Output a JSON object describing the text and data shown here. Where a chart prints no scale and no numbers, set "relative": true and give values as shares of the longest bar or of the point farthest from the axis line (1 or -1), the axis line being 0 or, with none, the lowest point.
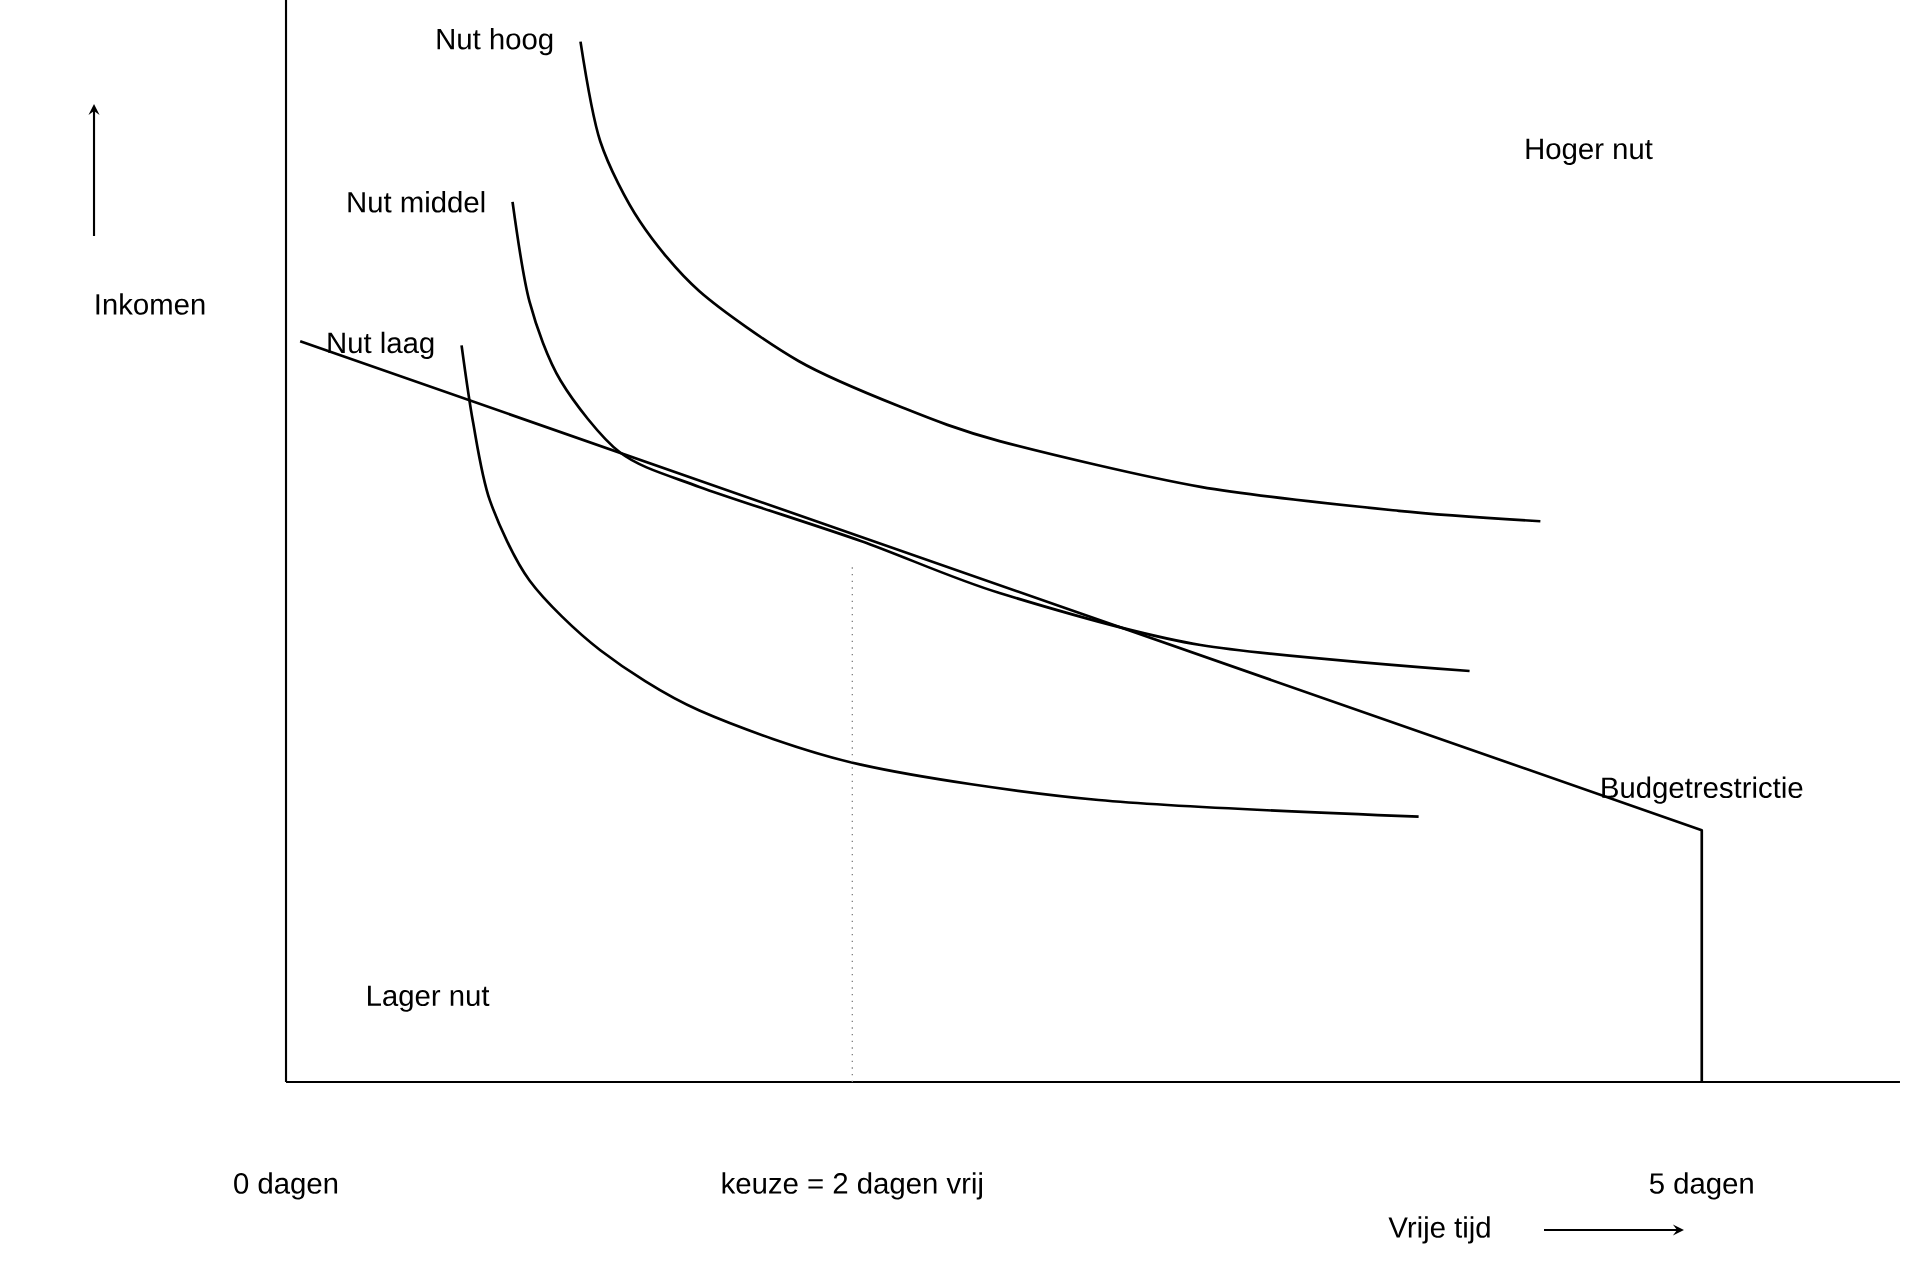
{
  "chart_data": {
    "type": "line",
    "relative": true,
    "xlabel": "Vrije tijd",
    "ylabel": "Inkomen",
    "xlim": [
      0,
      5.7
    ],
    "xticks": [
      {
        "value": 0,
        "label": "0 dagen"
      },
      {
        "value": 2,
        "label": "keuze = 2 dagen vrij"
      },
      {
        "value": 5,
        "label": "5 dagen"
      }
    ],
    "annotations": [
      "Hoger nut",
      "Lager nut"
    ],
    "series": [
      {
        "name": "Budgetrestrictie",
        "color": "#000000",
        "x": [
          0.05,
          5,
          5
        ],
        "values": [
          0.712,
          0.242,
          0
        ]
      },
      {
        "name": "Nut hoog",
        "color": "#000000",
        "x": [
          1.04,
          1.11,
          1.25,
          1.46,
          1.81,
          2.17,
          2.52,
          3.23,
          3.93,
          4.43
        ],
        "values": [
          1.0,
          0.904,
          0.827,
          0.76,
          0.693,
          0.649,
          0.616,
          0.572,
          0.549,
          0.539
        ]
      },
      {
        "name": "Nut middel",
        "color": "#000000",
        "x": [
          0.8,
          0.86,
          0.97,
          1.18,
          1.46,
          2.03,
          2.52,
          3.23,
          4.18
        ],
        "values": [
          0.846,
          0.75,
          0.674,
          0.605,
          0.572,
          0.52,
          0.47,
          0.42,
          0.395
        ]
      },
      {
        "name": "Nut laag",
        "color": "#000000",
        "x": [
          0.62,
          0.66,
          0.72,
          0.86,
          1.11,
          1.46,
          2.03,
          2.87,
          4.0
        ],
        "values": [
          0.708,
          0.635,
          0.559,
          0.482,
          0.415,
          0.357,
          0.305,
          0.271,
          0.255
        ]
      },
      {
        "color": "#808080",
        "line_style": "dotted",
        "x": [
          2,
          2
        ],
        "values": [
          0,
          0.497
        ]
      }
    ]
  }
}
